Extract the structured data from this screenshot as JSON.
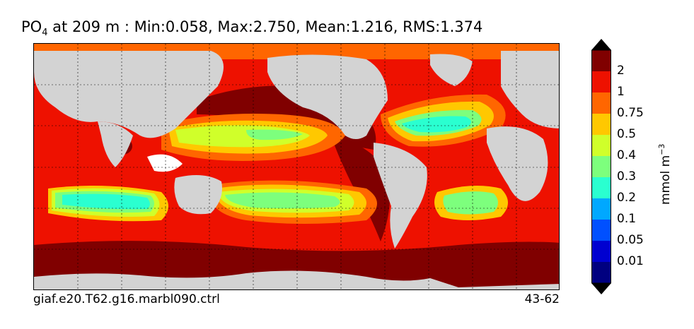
{
  "title": {
    "variable": "PO",
    "subscript": "4",
    "text": " at 209 m : Min:0.058, Max:2.750, Mean:1.216, RMS:1.374"
  },
  "footer": {
    "case_name": "giaf.e20.T62.g16.marbl090.ctrl",
    "years": "43-62"
  },
  "colorbar": {
    "unit_label": "mmol m",
    "unit_exponent": "−3",
    "levels": [
      "2",
      "1",
      "0.75",
      "0.5",
      "0.4",
      "0.3",
      "0.2",
      "0.1",
      "0.05",
      "0.01"
    ],
    "colors": [
      "#000080",
      "#0000d0",
      "#0050ff",
      "#00a8ff",
      "#2affd0",
      "#7dff7d",
      "#d0ff2a",
      "#ffc800",
      "#ff6600",
      "#ee1100",
      "#800000"
    ]
  },
  "map": {
    "land_color": "#d3d3d3",
    "ice_color": "#ffffff"
  }
}
